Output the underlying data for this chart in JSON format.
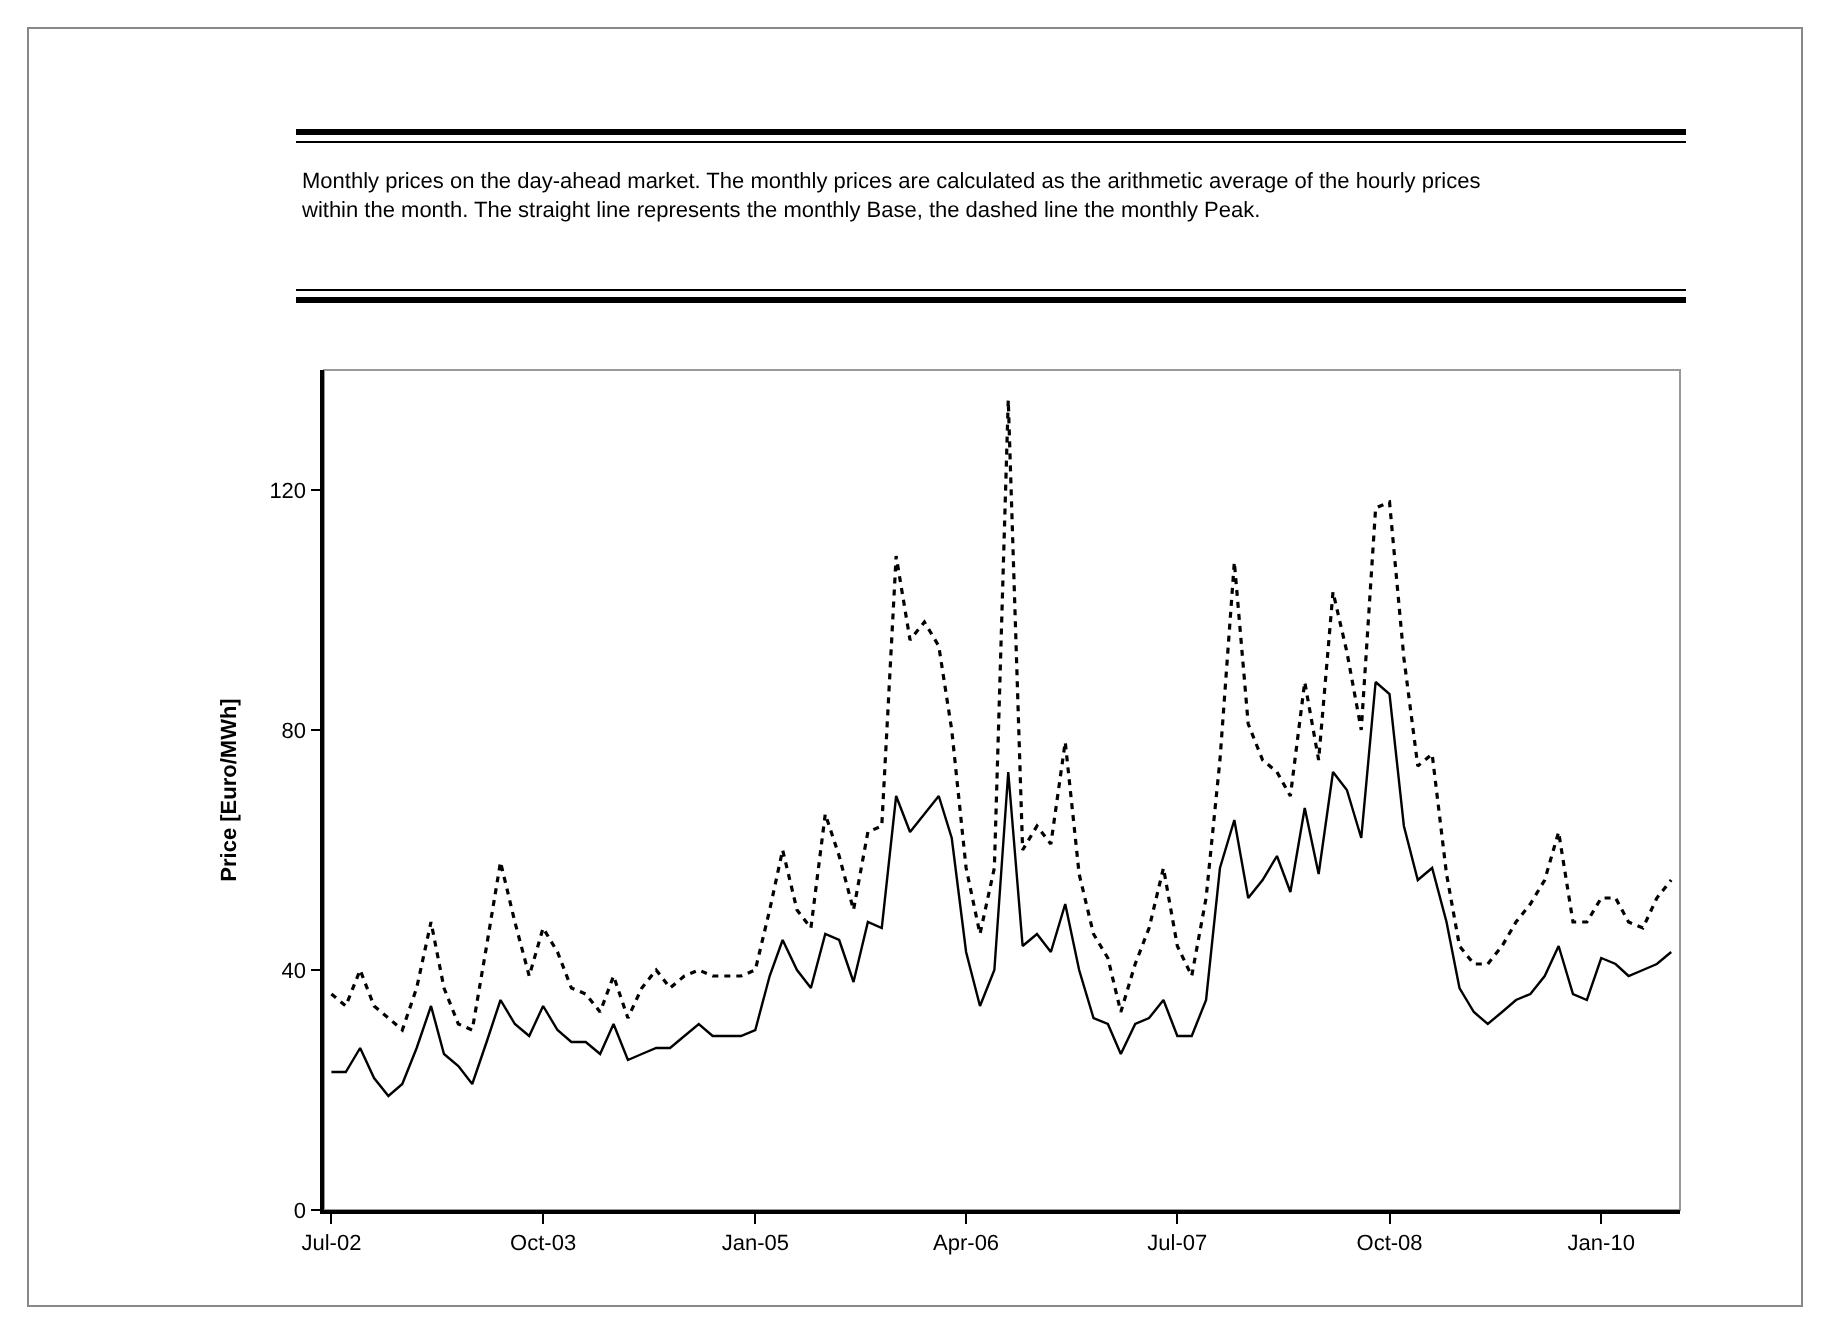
{
  "chart_data": {
    "type": "line",
    "title": "Monthly prices on the day-ahead market. The monthly prices are calculated as the arithmetic average of the hourly prices within the month. The straight line represents the monthly Base, the dashed line the monthly Peak.",
    "ylabel": "Price [Euro/MWh]",
    "x": [
      "2002-07",
      "2002-08",
      "2002-09",
      "2002-10",
      "2002-11",
      "2002-12",
      "2003-01",
      "2003-02",
      "2003-03",
      "2003-04",
      "2003-05",
      "2003-06",
      "2003-07",
      "2003-08",
      "2003-09",
      "2003-10",
      "2003-11",
      "2003-12",
      "2004-01",
      "2004-02",
      "2004-03",
      "2004-04",
      "2004-05",
      "2004-06",
      "2004-07",
      "2004-08",
      "2004-09",
      "2004-10",
      "2004-11",
      "2004-12",
      "2005-01",
      "2005-02",
      "2005-03",
      "2005-04",
      "2005-05",
      "2005-06",
      "2005-07",
      "2005-08",
      "2005-09",
      "2005-10",
      "2005-11",
      "2005-12",
      "2006-01",
      "2006-02",
      "2006-03",
      "2006-04",
      "2006-05",
      "2006-06",
      "2006-07",
      "2006-08",
      "2006-09",
      "2006-10",
      "2006-11",
      "2006-12",
      "2007-01",
      "2007-02",
      "2007-03",
      "2007-04",
      "2007-05",
      "2007-06",
      "2007-07",
      "2007-08",
      "2007-09",
      "2007-10",
      "2007-11",
      "2007-12",
      "2008-01",
      "2008-02",
      "2008-03",
      "2008-04",
      "2008-05",
      "2008-06",
      "2008-07",
      "2008-08",
      "2008-09",
      "2008-10",
      "2008-11",
      "2008-12",
      "2009-01",
      "2009-02",
      "2009-03",
      "2009-04",
      "2009-05",
      "2009-06",
      "2009-07",
      "2009-08",
      "2009-09",
      "2009-10",
      "2009-11",
      "2009-12",
      "2010-01",
      "2010-02",
      "2010-03",
      "2010-04",
      "2010-05",
      "2010-06"
    ],
    "series": [
      {
        "color": "#000000",
        "line_style": "solid",
        "values": [
          23,
          23,
          27,
          22,
          19,
          21,
          27,
          34,
          26,
          24,
          21,
          28,
          35,
          31,
          29,
          34,
          30,
          28,
          28,
          26,
          31,
          25,
          26,
          27,
          27,
          29,
          31,
          29,
          29,
          29,
          30,
          39,
          45,
          40,
          37,
          46,
          45,
          38,
          48,
          47,
          69,
          63,
          66,
          69,
          62,
          43,
          34,
          40,
          73,
          44,
          46,
          43,
          51,
          40,
          32,
          31,
          26,
          31,
          32,
          35,
          29,
          29,
          35,
          57,
          65,
          52,
          55,
          59,
          53,
          67,
          56,
          73,
          70,
          62,
          88,
          86,
          64,
          55,
          57,
          48,
          37,
          33,
          31,
          33,
          35,
          36,
          39,
          44,
          36,
          35,
          42,
          41,
          39,
          40,
          41,
          43
        ]
      },
      {
        "color": "#000000",
        "line_style": "dotted",
        "values": [
          36,
          34,
          40,
          34,
          32,
          30,
          37,
          48,
          37,
          31,
          30,
          44,
          58,
          48,
          39,
          47,
          43,
          37,
          36,
          33,
          39,
          32,
          37,
          40,
          37,
          39,
          40,
          39,
          39,
          39,
          40,
          50,
          60,
          50,
          47,
          66,
          59,
          50,
          63,
          64,
          109,
          95,
          98,
          94,
          80,
          57,
          46,
          57,
          135,
          60,
          64,
          61,
          78,
          56,
          46,
          42,
          33,
          41,
          47,
          57,
          44,
          39,
          52,
          75,
          108,
          81,
          75,
          73,
          69,
          88,
          75,
          103,
          93,
          80,
          117,
          118,
          92,
          74,
          76,
          56,
          44,
          41,
          41,
          44,
          48,
          51,
          55,
          63,
          48,
          48,
          52,
          52,
          48,
          47,
          52,
          55
        ]
      }
    ],
    "xlim": [
      "2002-06-15",
      "2010-06-20"
    ],
    "xticks": [
      {
        "value": "2002-07",
        "label": "Jul-02"
      },
      {
        "value": "2003-10",
        "label": "Oct-03"
      },
      {
        "value": "2005-01",
        "label": "Jan-05"
      },
      {
        "value": "2006-04",
        "label": "Apr-06"
      },
      {
        "value": "2007-07",
        "label": "Jul-07"
      },
      {
        "value": "2008-10",
        "label": "Oct-08"
      },
      {
        "value": "2010-01",
        "label": "Jan-10"
      }
    ],
    "ylim": [
      0,
      140
    ],
    "yticks": [
      0,
      40,
      80,
      120
    ],
    "grid": false,
    "marker": "none"
  }
}
